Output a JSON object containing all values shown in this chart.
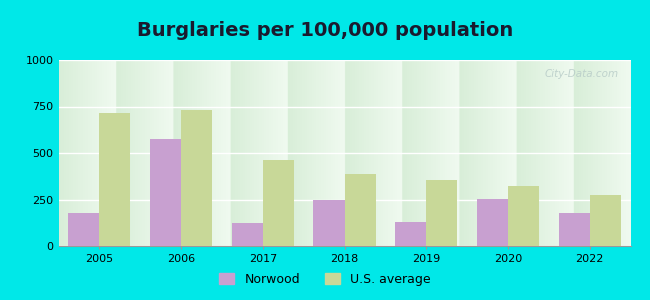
{
  "title": "Burglaries per 100,000 population",
  "years": [
    2005,
    2006,
    2017,
    2018,
    2019,
    2020,
    2022
  ],
  "norwood": [
    175,
    575,
    125,
    250,
    130,
    255,
    175
  ],
  "us_average": [
    715,
    730,
    460,
    385,
    355,
    325,
    275
  ],
  "norwood_color": "#c8a0d0",
  "us_avg_color": "#c8d898",
  "bg_top_color": "#d8eed8",
  "bg_bottom_color": "#f0faf0",
  "outer_bg": "#00e8e8",
  "ylim": [
    0,
    1000
  ],
  "yticks": [
    0,
    250,
    500,
    750,
    1000
  ],
  "bar_width": 0.38,
  "title_fontsize": 14,
  "title_color": "#1a1a2e",
  "tick_fontsize": 8,
  "legend_labels": [
    "Norwood",
    "U.S. average"
  ],
  "watermark": "City-Data.com"
}
